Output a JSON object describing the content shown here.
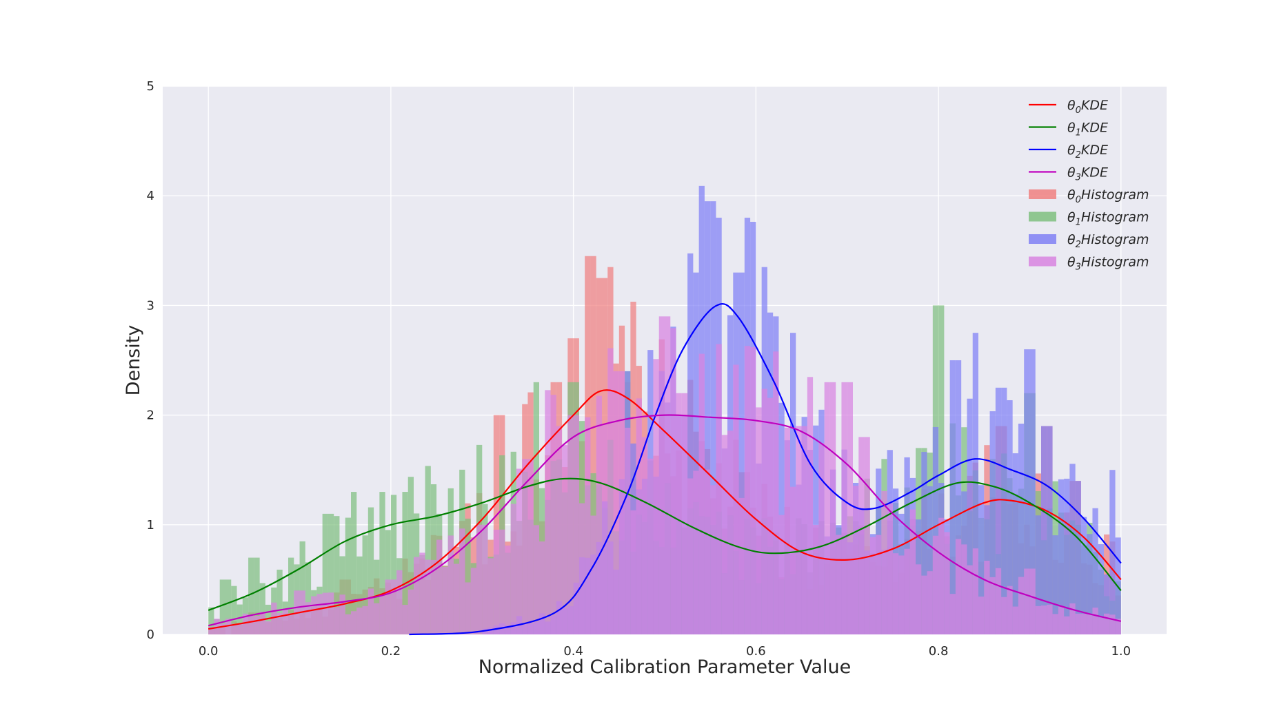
{
  "chart_data": {
    "type": "histogram+kde",
    "xlabel": "Normalized Calibration Parameter Value",
    "ylabel": "Density",
    "xlim": [
      -0.05,
      1.05
    ],
    "ylim": [
      0,
      5
    ],
    "xticks": [
      "0.0",
      "0.2",
      "0.4",
      "0.6",
      "0.8",
      "1.0"
    ],
    "yticks": [
      "0",
      "1",
      "2",
      "3",
      "4",
      "5"
    ],
    "grid": true,
    "background": "#eaeaf2",
    "legend_position": "upper right",
    "series": [
      {
        "name": "θ0",
        "kde_label": "KDE",
        "hist_label": "Histogram",
        "color": "#ff0000",
        "hist_color": "#f08080",
        "kde": [
          [
            0.0,
            0.05
          ],
          [
            0.05,
            0.12
          ],
          [
            0.1,
            0.2
          ],
          [
            0.15,
            0.28
          ],
          [
            0.2,
            0.4
          ],
          [
            0.25,
            0.65
          ],
          [
            0.3,
            1.05
          ],
          [
            0.35,
            1.55
          ],
          [
            0.4,
            2.0
          ],
          [
            0.43,
            2.22
          ],
          [
            0.46,
            2.15
          ],
          [
            0.5,
            1.85
          ],
          [
            0.55,
            1.45
          ],
          [
            0.6,
            1.05
          ],
          [
            0.65,
            0.75
          ],
          [
            0.7,
            0.68
          ],
          [
            0.75,
            0.78
          ],
          [
            0.8,
            1.0
          ],
          [
            0.85,
            1.2
          ],
          [
            0.88,
            1.22
          ],
          [
            0.92,
            1.12
          ],
          [
            0.96,
            0.88
          ],
          [
            1.0,
            0.5
          ]
        ],
        "hist_peaks": [
          [
            0.05,
            0.2
          ],
          [
            0.15,
            0.5
          ],
          [
            0.25,
            0.9
          ],
          [
            0.32,
            2.0
          ],
          [
            0.35,
            2.1
          ],
          [
            0.38,
            2.3
          ],
          [
            0.4,
            2.7
          ],
          [
            0.42,
            3.45
          ],
          [
            0.43,
            3.25
          ],
          [
            0.44,
            3.35
          ],
          [
            0.46,
            2.3
          ],
          [
            0.5,
            1.5
          ],
          [
            0.55,
            1.2
          ],
          [
            0.6,
            0.9
          ],
          [
            0.7,
            0.6
          ],
          [
            0.8,
            0.9
          ],
          [
            0.87,
            1.9
          ],
          [
            0.92,
            1.9
          ],
          [
            0.95,
            1.4
          ]
        ]
      },
      {
        "name": "θ1",
        "kde_label": "KDE",
        "hist_label": "Histogram",
        "color": "#008000",
        "hist_color": "#7fbf7f",
        "kde": [
          [
            0.0,
            0.22
          ],
          [
            0.05,
            0.38
          ],
          [
            0.1,
            0.6
          ],
          [
            0.15,
            0.85
          ],
          [
            0.2,
            1.0
          ],
          [
            0.25,
            1.08
          ],
          [
            0.3,
            1.2
          ],
          [
            0.35,
            1.35
          ],
          [
            0.39,
            1.42
          ],
          [
            0.43,
            1.38
          ],
          [
            0.48,
            1.2
          ],
          [
            0.53,
            0.98
          ],
          [
            0.58,
            0.8
          ],
          [
            0.62,
            0.74
          ],
          [
            0.67,
            0.8
          ],
          [
            0.72,
            0.98
          ],
          [
            0.77,
            1.2
          ],
          [
            0.82,
            1.38
          ],
          [
            0.86,
            1.35
          ],
          [
            0.9,
            1.2
          ],
          [
            0.95,
            0.9
          ],
          [
            1.0,
            0.4
          ]
        ],
        "hist_peaks": [
          [
            0.02,
            0.5
          ],
          [
            0.05,
            0.7
          ],
          [
            0.09,
            0.7
          ],
          [
            0.13,
            1.1
          ],
          [
            0.16,
            1.3
          ],
          [
            0.19,
            1.3
          ],
          [
            0.22,
            1.3
          ],
          [
            0.25,
            1.1
          ],
          [
            0.3,
            0.9
          ],
          [
            0.36,
            2.3
          ],
          [
            0.4,
            2.3
          ],
          [
            0.46,
            2.4
          ],
          [
            0.55,
            1.0
          ],
          [
            0.62,
            0.8
          ],
          [
            0.74,
            1.6
          ],
          [
            0.78,
            1.7
          ],
          [
            0.8,
            3.0
          ],
          [
            0.86,
            1.6
          ],
          [
            0.9,
            2.2
          ],
          [
            0.95,
            1.0
          ]
        ]
      },
      {
        "name": "θ2",
        "kde_label": "KDE",
        "hist_label": "Histogram",
        "color": "#0000ff",
        "hist_color": "#8080f5",
        "kde": [
          [
            0.22,
            0.0
          ],
          [
            0.3,
            0.03
          ],
          [
            0.38,
            0.2
          ],
          [
            0.42,
            0.6
          ],
          [
            0.46,
            1.3
          ],
          [
            0.49,
            2.0
          ],
          [
            0.52,
            2.6
          ],
          [
            0.555,
            2.99
          ],
          [
            0.58,
            2.9
          ],
          [
            0.62,
            2.3
          ],
          [
            0.66,
            1.55
          ],
          [
            0.7,
            1.2
          ],
          [
            0.73,
            1.15
          ],
          [
            0.77,
            1.3
          ],
          [
            0.8,
            1.45
          ],
          [
            0.84,
            1.6
          ],
          [
            0.88,
            1.5
          ],
          [
            0.92,
            1.35
          ],
          [
            0.96,
            1.05
          ],
          [
            1.0,
            0.65
          ]
        ],
        "hist_peaks": [
          [
            0.46,
            2.4
          ],
          [
            0.52,
            2.0
          ],
          [
            0.53,
            3.3
          ],
          [
            0.54,
            3.95
          ],
          [
            0.55,
            3.95
          ],
          [
            0.56,
            3.8
          ],
          [
            0.58,
            3.3
          ],
          [
            0.59,
            3.8
          ],
          [
            0.61,
            3.35
          ],
          [
            0.62,
            2.9
          ],
          [
            0.64,
            2.75
          ],
          [
            0.66,
            1.4
          ],
          [
            0.76,
            1.1
          ],
          [
            0.82,
            2.5
          ],
          [
            0.84,
            2.75
          ],
          [
            0.87,
            2.25
          ],
          [
            0.9,
            2.6
          ],
          [
            0.92,
            1.9
          ],
          [
            0.95,
            1.4
          ],
          [
            0.99,
            1.5
          ]
        ]
      },
      {
        "name": "θ3",
        "kde_label": "KDE",
        "hist_label": "Histogram",
        "color": "#bf00bf",
        "hist_color": "#d884e0",
        "kde": [
          [
            0.0,
            0.08
          ],
          [
            0.05,
            0.18
          ],
          [
            0.1,
            0.25
          ],
          [
            0.15,
            0.3
          ],
          [
            0.2,
            0.38
          ],
          [
            0.25,
            0.6
          ],
          [
            0.3,
            0.95
          ],
          [
            0.35,
            1.4
          ],
          [
            0.4,
            1.8
          ],
          [
            0.45,
            1.95
          ],
          [
            0.5,
            2.0
          ],
          [
            0.55,
            1.98
          ],
          [
            0.6,
            1.95
          ],
          [
            0.65,
            1.85
          ],
          [
            0.7,
            1.55
          ],
          [
            0.75,
            1.1
          ],
          [
            0.8,
            0.75
          ],
          [
            0.85,
            0.5
          ],
          [
            0.9,
            0.35
          ],
          [
            0.95,
            0.22
          ],
          [
            1.0,
            0.12
          ]
        ],
        "hist_peaks": [
          [
            0.1,
            0.4
          ],
          [
            0.2,
            0.5
          ],
          [
            0.3,
            1.0
          ],
          [
            0.35,
            1.6
          ],
          [
            0.38,
            1.9
          ],
          [
            0.4,
            2.0
          ],
          [
            0.45,
            2.4
          ],
          [
            0.5,
            2.9
          ],
          [
            0.52,
            2.2
          ],
          [
            0.56,
            2.6
          ],
          [
            0.6,
            1.8
          ],
          [
            0.65,
            1.9
          ],
          [
            0.68,
            2.3
          ],
          [
            0.7,
            2.3
          ],
          [
            0.72,
            1.8
          ],
          [
            0.74,
            1.2
          ],
          [
            0.8,
            0.9
          ],
          [
            0.9,
            0.6
          ]
        ]
      }
    ]
  }
}
